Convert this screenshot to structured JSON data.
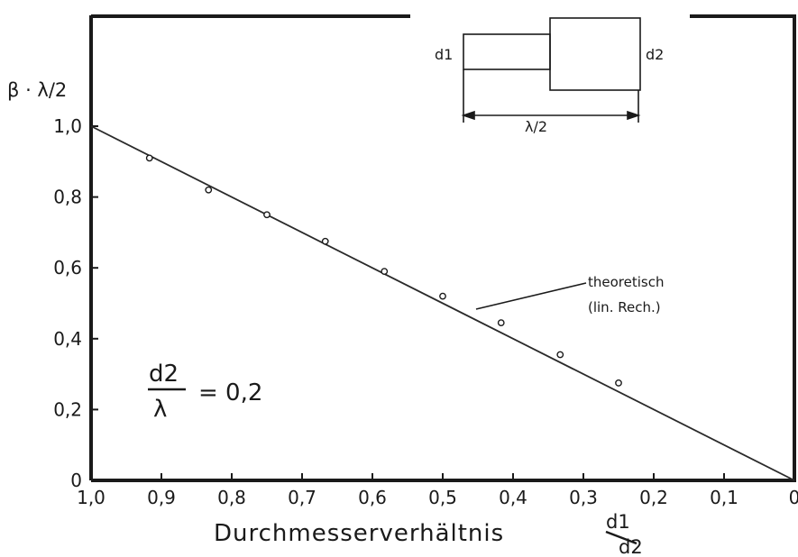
{
  "chart_data": {
    "type": "scatter",
    "xlabel": "Durchmesserverhältnis",
    "xlabel_ratio": {
      "num": "d1",
      "den": "d2"
    },
    "ylabel": "β · λ/2",
    "xlim": [
      1.0,
      0.0
    ],
    "ylim": [
      0,
      1.0
    ],
    "x_ticks": [
      "1,0",
      "0,9",
      "0,8",
      "0,7",
      "0,6",
      "0,5",
      "0,4",
      "0,3",
      "0,2",
      "0,1",
      "0"
    ],
    "y_ticks": [
      "0",
      "0,2",
      "0,4",
      "0,6",
      "0,8",
      "1,0"
    ],
    "grid": false,
    "series": [
      {
        "name": "theoretisch (lin. Rech.)",
        "type": "line",
        "x": [
          1.0,
          0.0
        ],
        "y": [
          1.0,
          0.0
        ]
      },
      {
        "type": "scatter",
        "x": [
          0.917,
          0.833,
          0.75,
          0.667,
          0.583,
          0.5,
          0.417,
          0.333,
          0.25
        ],
        "y": [
          0.91,
          0.82,
          0.75,
          0.675,
          0.59,
          0.52,
          0.445,
          0.355,
          0.275
        ]
      }
    ],
    "annotations": {
      "curve_label_line1": "theoretisch",
      "curve_label_line2": "(lin. Rech.)",
      "param_num": "d2",
      "param_den": "λ",
      "param_value": "= 0,2"
    },
    "inset": {
      "label_left": "d1",
      "label_right": "d2",
      "dimension": "λ/2"
    }
  }
}
